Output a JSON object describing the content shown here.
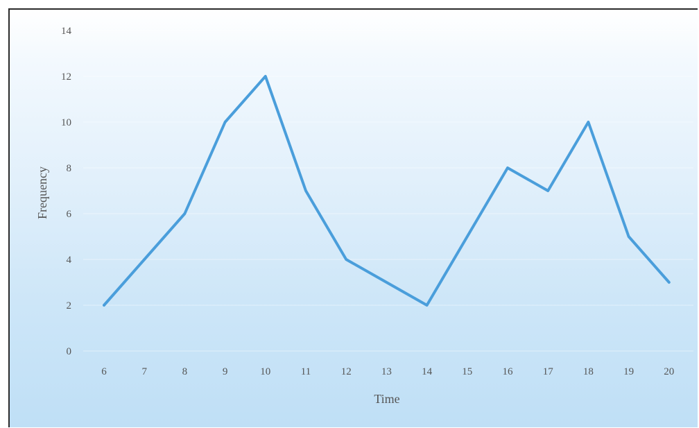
{
  "chart_data": {
    "type": "line",
    "xlabel": "Time",
    "ylabel": "Frequency",
    "categories": [
      "6",
      "7",
      "8",
      "9",
      "10",
      "11",
      "12",
      "13",
      "14",
      "15",
      "16",
      "17",
      "18",
      "19",
      "20"
    ],
    "y_ticks": [
      "0",
      "2",
      "4",
      "6",
      "8",
      "10",
      "12",
      "14"
    ],
    "ylim": [
      0,
      14
    ],
    "grid": true,
    "legend": "none",
    "series": [
      {
        "values": [
          2,
          4,
          6,
          10,
          12,
          7,
          4,
          3,
          2,
          5,
          8,
          7,
          10,
          5,
          3
        ],
        "color": "#4a9edb"
      }
    ]
  }
}
